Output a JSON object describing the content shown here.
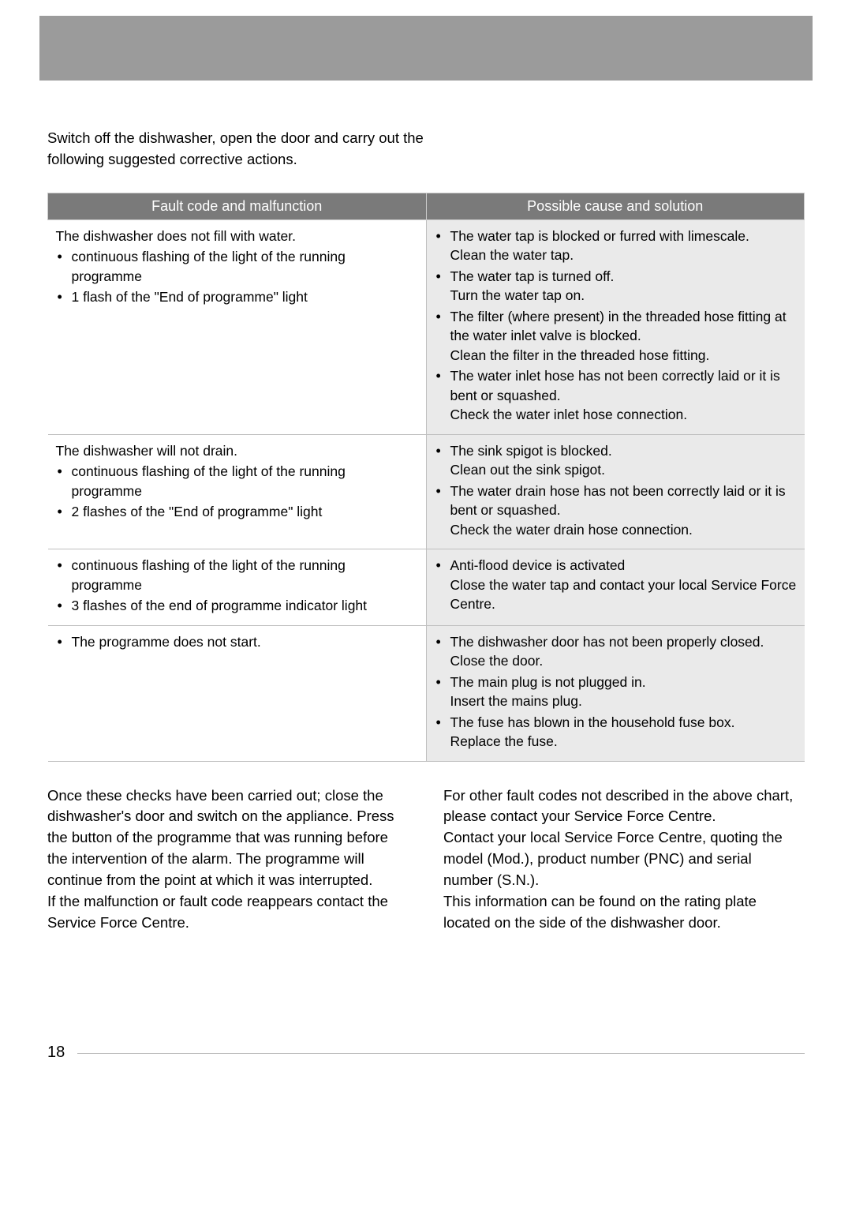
{
  "intro": "Switch off the dishwasher, open the door and carry out the following suggested corrective actions.",
  "headers": {
    "left": "Fault code and malfunction",
    "right": "Possible cause and solution"
  },
  "rows": [
    {
      "fault_lead": "The dishwasher does not fill with water.",
      "fault_items": [
        "continuous flashing of the light of the running programme",
        "1 flash of the \"End of programme\" light"
      ],
      "solutions": [
        {
          "main": "The water tap is blocked or furred with limescale.",
          "sub": "Clean the water tap."
        },
        {
          "main": "The water tap is turned off.",
          "sub": "Turn the water tap on."
        },
        {
          "main": "The filter (where present) in the threaded hose fitting at the water inlet valve is blocked.",
          "sub": "Clean the filter in the threaded hose fitting."
        },
        {
          "main": "The water inlet hose has not been correctly laid or it is bent or squashed.",
          "sub": "Check the water inlet hose connection."
        }
      ]
    },
    {
      "fault_lead": "The dishwasher will not drain.",
      "fault_items": [
        "continuous flashing of the light of the running programme",
        "2 flashes of the \"End of programme\" light"
      ],
      "solutions": [
        {
          "main": "The sink spigot is blocked.",
          "sub": "Clean out the sink spigot."
        },
        {
          "main": "The water drain hose has not been correctly laid or it is bent or squashed.",
          "sub": "Check the water drain hose connection."
        }
      ]
    },
    {
      "fault_lead": "",
      "fault_items": [
        "continuous flashing of the light of the running programme",
        "3 flashes of the end of programme indicator light"
      ],
      "solutions": [
        {
          "main": "Anti-flood device is activated",
          "sub": "Close the water tap and contact your local Service Force Centre."
        }
      ]
    },
    {
      "fault_lead": "",
      "fault_items": [
        "The programme does not start."
      ],
      "solutions": [
        {
          "main": "The dishwasher door has not been properly closed.",
          "sub": "Close the door."
        },
        {
          "main": "The main plug is not plugged in.",
          "sub": "Insert the mains plug."
        },
        {
          "main": "The fuse has blown in the household fuse box.",
          "sub": "Replace the fuse."
        }
      ]
    }
  ],
  "after": {
    "left1": "Once these checks have been carried out; close the dishwasher's door and switch on the appliance. Press the button of the programme that was running before the intervention of the alarm. The programme will continue from the point at which it was interrupted.",
    "left2": "If the malfunction or fault code reappears contact the Service Force Centre.",
    "right1": "For other fault codes not described in the above chart, please contact your Service Force Centre.",
    "right2": "Contact your local Service Force Centre, quoting the model (Mod.), product number (PNC) and serial number (S.N.).",
    "right3": "This information can be found on the rating plate located on the side of the dishwasher door."
  },
  "page_number": "18"
}
